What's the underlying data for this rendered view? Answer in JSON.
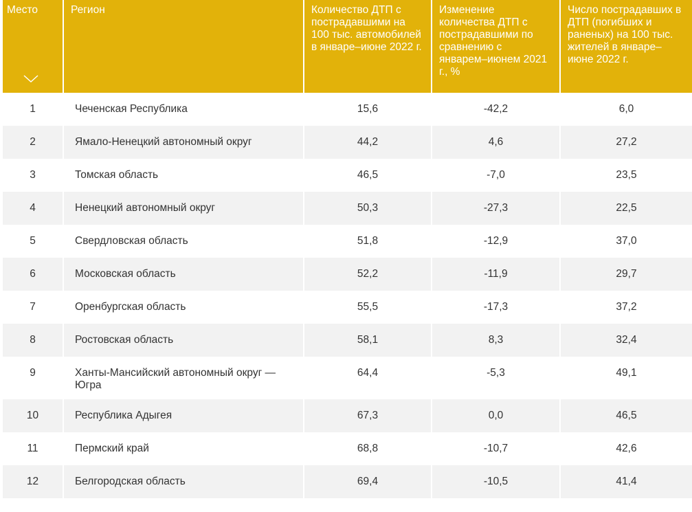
{
  "table": {
    "headers": {
      "place": "Место",
      "region": "Регион",
      "count": "Количество ДТП с пострадавшими на 100 тыс. автомобилей в январе–июне 2022 г.",
      "change": "Изменение количества ДТП с пострадавшими по сравнению с январем–июнем 2021 г., %",
      "victims": "Число пострадавших в ДТП (погибших и раненых) на 100 тыс. жителей в январе–июне 2022 г."
    },
    "header_color": "#e2b20a",
    "sort_icon": "chevron-down-icon",
    "rows": [
      {
        "place": "1",
        "region": "Чеченская Республика",
        "count": "15,6",
        "change": "-42,2",
        "victims": "6,0"
      },
      {
        "place": "2",
        "region": "Ямало-Ненецкий автономный округ",
        "count": "44,2",
        "change": "4,6",
        "victims": "27,2"
      },
      {
        "place": "3",
        "region": "Томская область",
        "count": "46,5",
        "change": "-7,0",
        "victims": "23,5"
      },
      {
        "place": "4",
        "region": "Ненецкий автономный округ",
        "count": "50,3",
        "change": "-27,3",
        "victims": "22,5"
      },
      {
        "place": "5",
        "region": "Свердловская область",
        "count": "51,8",
        "change": "-12,9",
        "victims": "37,0"
      },
      {
        "place": "6",
        "region": "Московская область",
        "count": "52,2",
        "change": "-11,9",
        "victims": "29,7"
      },
      {
        "place": "7",
        "region": "Оренбургская область",
        "count": "55,5",
        "change": "-17,3",
        "victims": "37,2"
      },
      {
        "place": "8",
        "region": "Ростовская область",
        "count": "58,1",
        "change": "8,3",
        "victims": "32,4"
      },
      {
        "place": "9",
        "region": "Ханты-Мансийский автономный округ — Югра",
        "count": "64,4",
        "change": "-5,3",
        "victims": "49,1"
      },
      {
        "place": "10",
        "region": "Республика Адыгея",
        "count": "67,3",
        "change": "0,0",
        "victims": "46,5"
      },
      {
        "place": "11",
        "region": "Пермский край",
        "count": "68,8",
        "change": "-10,7",
        "victims": "42,6"
      },
      {
        "place": "12",
        "region": "Белгородская область",
        "count": "69,4",
        "change": "-10,5",
        "victims": "41,4"
      }
    ]
  }
}
